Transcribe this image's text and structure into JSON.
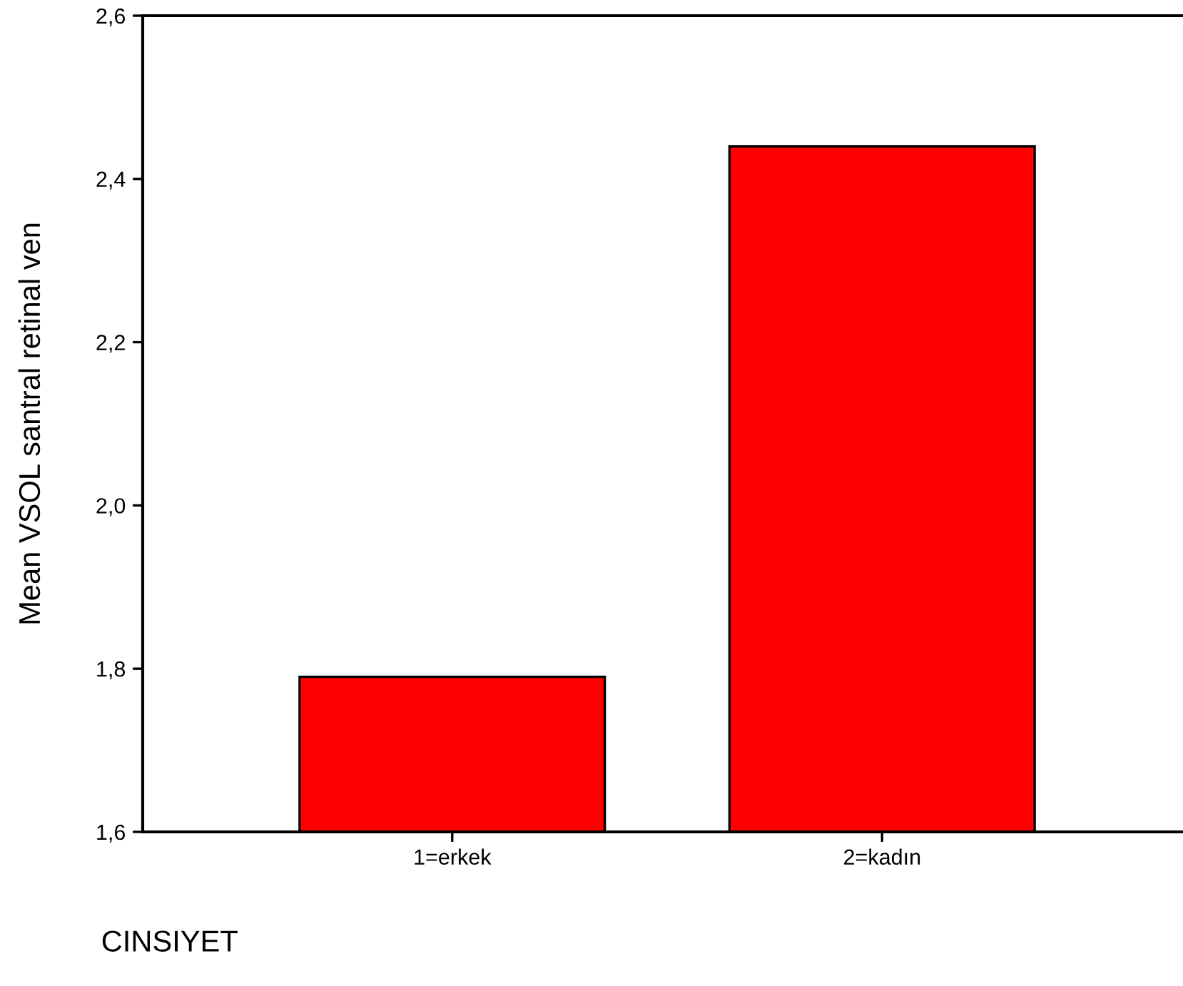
{
  "chart_data": {
    "type": "bar",
    "xlabel": "CINSIYET",
    "ylabel": "Mean VSOL santral retinal ven",
    "categories": [
      "1=erkek",
      "2=kadın"
    ],
    "values": [
      1.79,
      2.44
    ],
    "color": "#ff0000",
    "ylim": [
      1.6,
      2.6
    ],
    "yticks": [
      {
        "value": 1.6,
        "label": "1,6"
      },
      {
        "value": 1.8,
        "label": "1,8"
      },
      {
        "value": 2.0,
        "label": "2,0"
      },
      {
        "value": 2.2,
        "label": "2,2"
      },
      {
        "value": 2.4,
        "label": "2,4"
      },
      {
        "value": 2.6,
        "label": "2,6"
      }
    ],
    "grid": false,
    "legend": false
  }
}
